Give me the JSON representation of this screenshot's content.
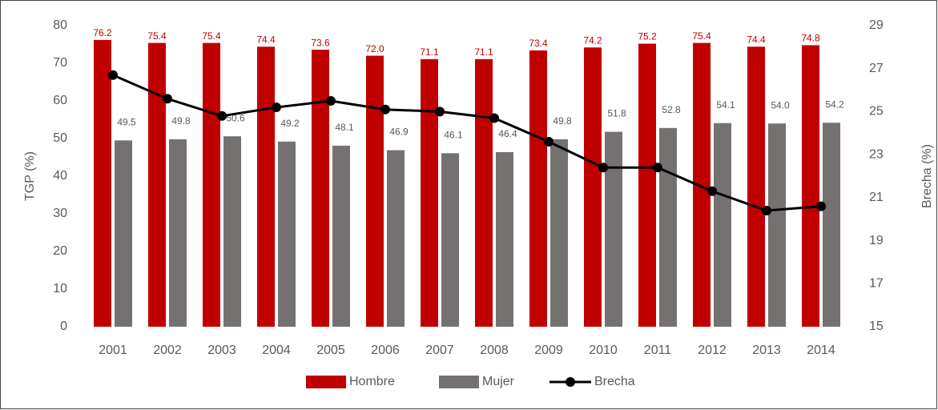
{
  "chart_data": {
    "type": "bar",
    "categories": [
      "2001",
      "2002",
      "2003",
      "2004",
      "2005",
      "2006",
      "2007",
      "2008",
      "2009",
      "2010",
      "2011",
      "2012",
      "2013",
      "2014"
    ],
    "series": [
      {
        "name": "Hombre",
        "color": "#c00000",
        "type": "bar",
        "values": [
          76.2,
          75.4,
          75.4,
          74.4,
          73.6,
          72.0,
          71.1,
          71.1,
          73.4,
          74.2,
          75.2,
          75.4,
          74.4,
          74.8
        ],
        "value_labels": [
          "76.2",
          "75.4",
          "75.4",
          "74.4",
          "73.6",
          "72.0",
          "71.1",
          "71.1",
          "73.4",
          "74.2",
          "75.2",
          "75.4",
          "74.4",
          "74.8"
        ]
      },
      {
        "name": "Mujer",
        "color": "#767171",
        "type": "bar",
        "values": [
          49.5,
          49.8,
          50.6,
          49.2,
          48.1,
          46.9,
          46.1,
          46.4,
          49.8,
          51.8,
          52.8,
          54.1,
          54.0,
          54.2
        ],
        "value_labels": [
          "49.5",
          "49.8",
          "50.6",
          "49.2",
          "48.1",
          "46.9",
          "46.1",
          "46.4",
          "49.8",
          "51.8",
          "52.8",
          "54.1",
          "54.0",
          "54.2"
        ]
      },
      {
        "name": "Brecha",
        "color": "#000000",
        "type": "line",
        "axis": "y2",
        "values": [
          26.7,
          25.6,
          24.8,
          25.2,
          25.5,
          25.1,
          25.0,
          24.7,
          23.6,
          22.4,
          22.4,
          21.3,
          20.4,
          20.6
        ]
      }
    ],
    "ylabel": "TGP (%)",
    "y2label": "Brecha (%)",
    "ylim": [
      0,
      80
    ],
    "yticks": [
      0,
      10,
      20,
      30,
      40,
      50,
      60,
      70,
      80
    ],
    "y2lim": [
      15,
      29
    ],
    "y2ticks": [
      15,
      17,
      19,
      21,
      23,
      25,
      27,
      29
    ],
    "legend": "bottom"
  }
}
